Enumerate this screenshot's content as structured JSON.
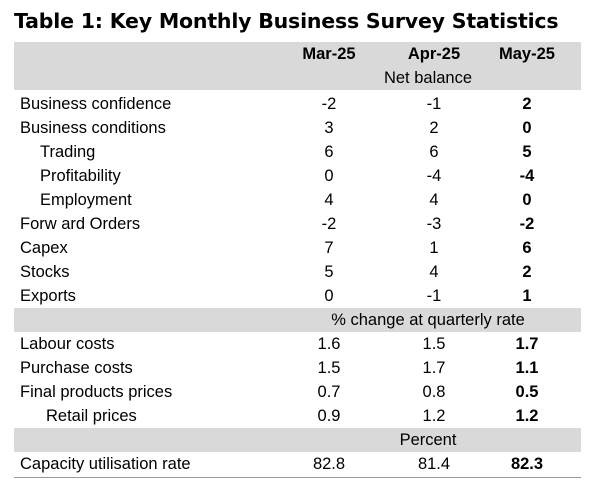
{
  "title": "Table 1: Key Monthly Business Survey Statistics",
  "columns": [
    "Mar-25",
    "Apr-25",
    "May-25"
  ],
  "sections": [
    {
      "unit": "Net balance",
      "rows": [
        {
          "label": "Business confidence",
          "values": [
            "-2",
            "-1",
            "2"
          ]
        },
        {
          "label": "Business conditions",
          "values": [
            "3",
            "2",
            "0"
          ]
        },
        {
          "label": "Trading",
          "values": [
            "6",
            "6",
            "5"
          ]
        },
        {
          "label": "Profitability",
          "values": [
            "0",
            "-4",
            "-4"
          ]
        },
        {
          "label": "Employment",
          "values": [
            "4",
            "4",
            "0"
          ]
        },
        {
          "label": "Forw ard Orders",
          "values": [
            "-2",
            "-3",
            "-2"
          ]
        },
        {
          "label": "Capex",
          "values": [
            "7",
            "1",
            "6"
          ]
        },
        {
          "label": "Stocks",
          "values": [
            "5",
            "4",
            "2"
          ]
        },
        {
          "label": "Exports",
          "values": [
            "0",
            "-1",
            "1"
          ]
        }
      ]
    },
    {
      "unit": "% change at quarterly rate",
      "rows": [
        {
          "label": "Labour costs",
          "values": [
            "1.6",
            "1.5",
            "1.7"
          ]
        },
        {
          "label": "Purchase costs",
          "values": [
            "1.5",
            "1.7",
            "1.1"
          ]
        },
        {
          "label": "Final products prices",
          "values": [
            "0.7",
            "0.8",
            "0.5"
          ]
        },
        {
          "label": "Retail prices",
          "values": [
            "0.9",
            "1.2",
            "1.2"
          ]
        }
      ]
    },
    {
      "unit": "Percent",
      "rows": [
        {
          "label": "Capacity utilisation rate",
          "values": [
            "82.8",
            "81.4",
            "82.3"
          ]
        }
      ]
    }
  ]
}
